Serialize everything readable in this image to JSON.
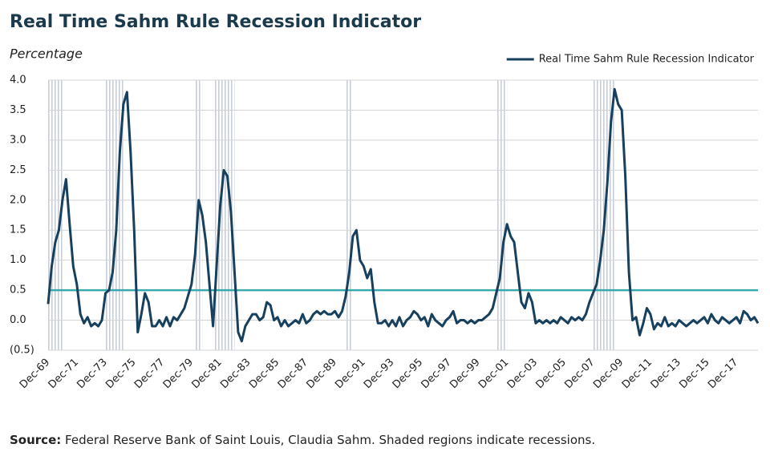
{
  "chart_data": {
    "type": "line",
    "title": "Real Time Sahm Rule Recession Indicator",
    "y_label": "Percentage",
    "source_label": "Source:",
    "source": "Federal Reserve Bank of Saint Louis, Claudia Sahm. Shaded regions indicate recessions.",
    "legend": "top-right",
    "grid": true,
    "threshold": 0.5,
    "threshold_color": "#3aa9ab",
    "ylim": [
      -0.5,
      4.0
    ],
    "yticks": [
      {
        "value": 4.0,
        "label": "4.0"
      },
      3.5,
      {
        "value": 3.0,
        "label": "3.0"
      },
      2.5,
      {
        "value": 2.0,
        "label": "2.0"
      },
      1.5,
      {
        "value": 1.0,
        "label": "1.0"
      },
      0.5,
      {
        "value": 0.0,
        "label": "0.0"
      },
      {
        "value": -0.5,
        "label": "(0.5)"
      }
    ],
    "categories": [
      "Dec-69",
      null,
      null,
      null,
      null,
      null,
      null,
      null,
      "Dec-71",
      null,
      null,
      null,
      null,
      null,
      null,
      null,
      "Dec-73",
      null,
      null,
      null,
      null,
      null,
      null,
      null,
      "Dec-75",
      null,
      null,
      null,
      null,
      null,
      null,
      null,
      "Dec-77",
      null,
      null,
      null,
      null,
      null,
      null,
      null,
      "Dec-79",
      null,
      null,
      null,
      null,
      null,
      null,
      null,
      "Dec-81",
      null,
      null,
      null,
      null,
      null,
      null,
      null,
      "Dec-83",
      null,
      null,
      null,
      null,
      null,
      null,
      null,
      "Dec-85",
      null,
      null,
      null,
      null,
      null,
      null,
      null,
      "Dec-87",
      null,
      null,
      null,
      null,
      null,
      null,
      null,
      "Dec-89",
      null,
      null,
      null,
      null,
      null,
      null,
      null,
      "Dec-91",
      null,
      null,
      null,
      null,
      null,
      null,
      null,
      "Dec-93",
      null,
      null,
      null,
      null,
      null,
      null,
      null,
      "Dec-95",
      null,
      null,
      null,
      null,
      null,
      null,
      null,
      "Dec-97",
      null,
      null,
      null,
      null,
      null,
      null,
      null,
      "Dec-99",
      null,
      null,
      null,
      null,
      null,
      null,
      null,
      "Dec-01",
      null,
      null,
      null,
      null,
      null,
      null,
      null,
      "Dec-03",
      null,
      null,
      null,
      null,
      null,
      null,
      null,
      "Dec-05",
      null,
      null,
      null,
      null,
      null,
      null,
      null,
      "Dec-07",
      null,
      null,
      null,
      null,
      null,
      null,
      null,
      "Dec-09",
      null,
      null,
      null,
      null,
      null,
      null,
      null,
      "Dec-11",
      null,
      null,
      null,
      null,
      null,
      null,
      null,
      "Dec-13",
      null,
      null,
      null,
      null,
      null,
      null,
      null,
      "Dec-15",
      null,
      null,
      null,
      null,
      null,
      null,
      null,
      "Dec-17",
      null,
      null,
      null,
      null,
      null,
      null
    ],
    "series": [
      {
        "name": "Real Time Sahm Rule Recession Indicator",
        "color": "#17405e",
        "values": [
          0.27,
          0.9,
          1.3,
          1.5,
          2.0,
          2.35,
          1.6,
          0.9,
          0.6,
          0.1,
          -0.05,
          0.05,
          -0.1,
          -0.05,
          -0.1,
          0.0,
          0.45,
          0.5,
          0.8,
          1.5,
          2.8,
          3.6,
          3.8,
          2.8,
          1.5,
          -0.2,
          0.1,
          0.45,
          0.3,
          -0.1,
          -0.1,
          0.0,
          -0.1,
          0.05,
          -0.1,
          0.05,
          0.0,
          0.1,
          0.2,
          0.4,
          0.6,
          1.1,
          2.0,
          1.75,
          1.3,
          0.6,
          -0.1,
          0.9,
          1.9,
          2.5,
          2.4,
          1.8,
          0.8,
          -0.2,
          -0.35,
          -0.1,
          0.0,
          0.1,
          0.1,
          0.0,
          0.05,
          0.3,
          0.25,
          0.0,
          0.05,
          -0.1,
          0.0,
          -0.1,
          -0.05,
          0.0,
          -0.05,
          0.1,
          -0.05,
          0.0,
          0.1,
          0.15,
          0.1,
          0.15,
          0.1,
          0.1,
          0.15,
          0.05,
          0.15,
          0.4,
          0.8,
          1.4,
          1.5,
          1.0,
          0.9,
          0.7,
          0.85,
          0.3,
          -0.05,
          -0.05,
          0.0,
          -0.1,
          0.0,
          -0.1,
          0.05,
          -0.1,
          0.0,
          0.05,
          0.15,
          0.1,
          0.0,
          0.05,
          -0.1,
          0.1,
          0.0,
          -0.05,
          -0.1,
          0.0,
          0.05,
          0.15,
          -0.05,
          0.0,
          0.0,
          -0.05,
          0.0,
          -0.05,
          0.0,
          0.0,
          0.05,
          0.1,
          0.2,
          0.45,
          0.7,
          1.3,
          1.6,
          1.4,
          1.3,
          0.8,
          0.3,
          0.2,
          0.45,
          0.3,
          -0.05,
          0.0,
          -0.05,
          0.0,
          -0.05,
          0.0,
          -0.05,
          0.05,
          0.0,
          -0.05,
          0.05,
          0.0,
          0.05,
          0.0,
          0.1,
          0.3,
          0.45,
          0.6,
          1.0,
          1.5,
          2.3,
          3.3,
          3.85,
          3.6,
          3.5,
          2.4,
          0.8,
          0.0,
          0.05,
          -0.25,
          -0.05,
          0.2,
          0.1,
          -0.15,
          -0.05,
          -0.1,
          0.05,
          -0.1,
          -0.05,
          -0.1,
          0.0,
          -0.05,
          -0.1,
          -0.05,
          0.0,
          -0.05,
          0.0,
          0.05,
          -0.05,
          0.1,
          0.0,
          -0.05,
          0.05,
          0.0,
          -0.05,
          0.0,
          0.05,
          -0.05,
          0.15,
          0.1,
          0.0,
          0.05,
          -0.05
        ]
      }
    ]
  }
}
